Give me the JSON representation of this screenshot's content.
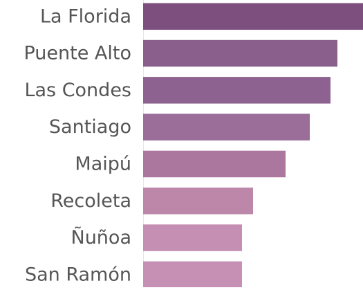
{
  "chart_data": {
    "type": "bar",
    "orientation": "horizontal",
    "categories": [
      "La Florida",
      "Puente Alto",
      "Las Condes",
      "Santiago",
      "Maipú",
      "Recoleta",
      "Ñuñoa",
      "San Ramón"
    ],
    "values": [
      318,
      281,
      271,
      241,
      206,
      159,
      143,
      143
    ],
    "colors": [
      "#7d4f7e",
      "#8a5f8c",
      "#8d6290",
      "#9b6d99",
      "#ab779f",
      "#bd87aa",
      "#c48fb3",
      "#c690b4"
    ],
    "xlim": [
      0,
      318
    ]
  }
}
